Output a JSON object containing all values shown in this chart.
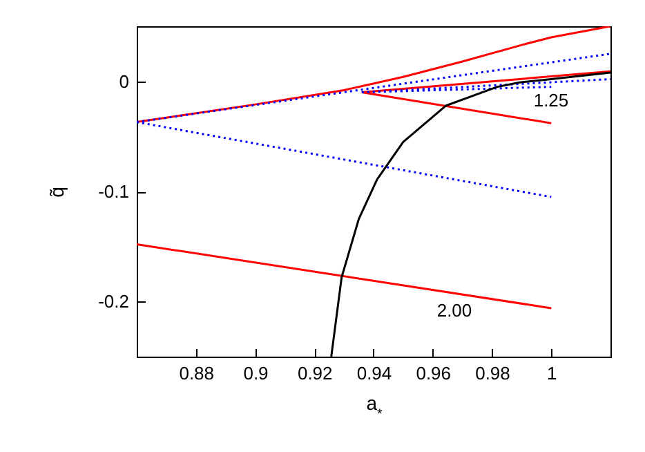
{
  "chart_data": {
    "type": "line",
    "xlabel": "a$_{*}$",
    "ylabel": "q̃",
    "xlim": [
      0.86,
      1.02
    ],
    "ylim": [
      -0.25,
      0.05
    ],
    "xticks": [
      0.88,
      0.9,
      0.92,
      0.94,
      0.96,
      0.98,
      1
    ],
    "yticks": [
      -0.2,
      -0.1,
      0
    ],
    "series": [
      {
        "color": "#ff0000",
        "line_style": "solid",
        "x": [
          0.86,
          0.9,
          0.93,
          0.95,
          0.97,
          0.99,
          1.0,
          1.02
        ],
        "values": [
          -0.037,
          -0.021,
          -0.008,
          0.004,
          0.018,
          0.033,
          0.04,
          0.05
        ]
      },
      {
        "color": "#ff0000",
        "line_style": "solid",
        "x": [
          0.936,
          1.02
        ],
        "values": [
          -0.01,
          0.009
        ]
      },
      {
        "color": "#ff0000",
        "line_style": "solid",
        "x": [
          0.936,
          1.0
        ],
        "values": [
          -0.01,
          -0.038
        ]
      },
      {
        "color": "#ff0000",
        "line_style": "solid",
        "x": [
          0.86,
          1.0
        ],
        "values": [
          -0.148,
          -0.206
        ]
      },
      {
        "color": "#0000ff",
        "line_style": "dotted",
        "x": [
          0.86,
          1.02
        ],
        "values": [
          -0.037,
          0.025
        ]
      },
      {
        "color": "#0000ff",
        "line_style": "dotted",
        "x": [
          0.936,
          1.0
        ],
        "values": [
          -0.01,
          -0.005
        ]
      },
      {
        "color": "#0000ff",
        "line_style": "dotted",
        "x": [
          0.936,
          1.02
        ],
        "values": [
          -0.01,
          0.002
        ]
      },
      {
        "color": "#0000ff",
        "line_style": "dotted",
        "x": [
          0.86,
          1.0
        ],
        "values": [
          -0.037,
          -0.105
        ]
      },
      {
        "color": "#000000",
        "line_style": "solid",
        "x": [
          0.9257,
          0.9292,
          0.935,
          0.9412,
          0.95,
          0.9645,
          0.9818,
          0.9893,
          1.0,
          1.02
        ],
        "values": [
          -0.25,
          -0.178,
          -0.125,
          -0.089,
          -0.055,
          -0.022,
          -0.005,
          -0.001,
          0.002,
          0.008
        ]
      }
    ],
    "annotations": [
      "1.25",
      "2.00"
    ]
  }
}
